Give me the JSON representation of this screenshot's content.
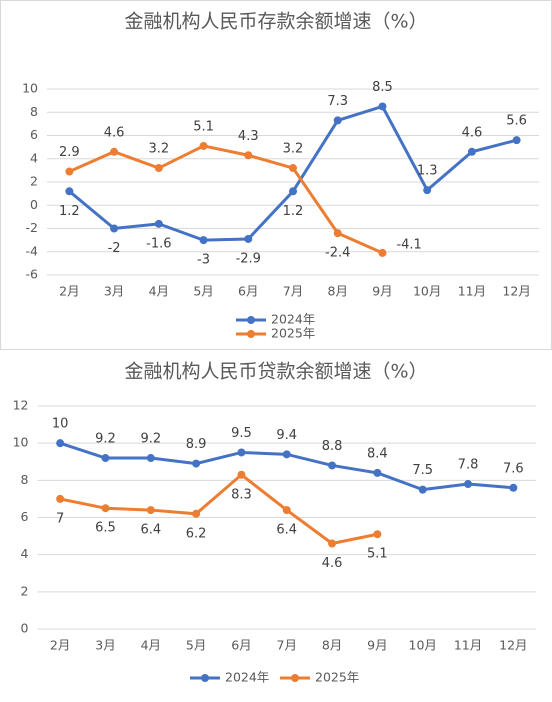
{
  "chart_data": [
    {
      "type": "line",
      "title": "金融机构人民币存款余额增速（%）",
      "categories": [
        "2月",
        "3月",
        "4月",
        "5月",
        "6月",
        "7月",
        "8月",
        "9月",
        "10月",
        "11月",
        "12月"
      ],
      "series": [
        {
          "name": "2024年",
          "color": "#4472c4",
          "values": [
            1.2,
            -2,
            -1.6,
            -3,
            -2.9,
            1.2,
            7.3,
            8.5,
            1.3,
            4.6,
            5.6
          ]
        },
        {
          "name": "2025年",
          "color": "#ed7d31",
          "values": [
            2.9,
            4.6,
            3.2,
            5.1,
            4.3,
            3.2,
            -2.4,
            -4.1,
            null,
            null,
            null
          ]
        }
      ],
      "ylim": [
        -6,
        10
      ],
      "yticks": [
        -6,
        -4,
        -2,
        0,
        2,
        4,
        6,
        8,
        10
      ],
      "grid": true,
      "legend": "bottom"
    },
    {
      "type": "line",
      "title": "金融机构人民币贷款余额增速（%）",
      "categories": [
        "2月",
        "3月",
        "4月",
        "5月",
        "6月",
        "7月",
        "8月",
        "9月",
        "10月",
        "11月",
        "12月"
      ],
      "series": [
        {
          "name": "2024年",
          "color": "#4472c4",
          "values": [
            10,
            9.2,
            9.2,
            8.9,
            9.5,
            9.4,
            8.8,
            8.4,
            7.5,
            7.8,
            7.6
          ]
        },
        {
          "name": "2025年",
          "color": "#ed7d31",
          "values": [
            7,
            6.5,
            6.4,
            6.2,
            8.3,
            6.4,
            4.6,
            5.1,
            null,
            null,
            null
          ]
        }
      ],
      "ylim": [
        0,
        12
      ],
      "yticks": [
        0,
        2,
        4,
        6,
        8,
        10,
        12
      ],
      "grid": true,
      "legend": "bottom"
    }
  ]
}
